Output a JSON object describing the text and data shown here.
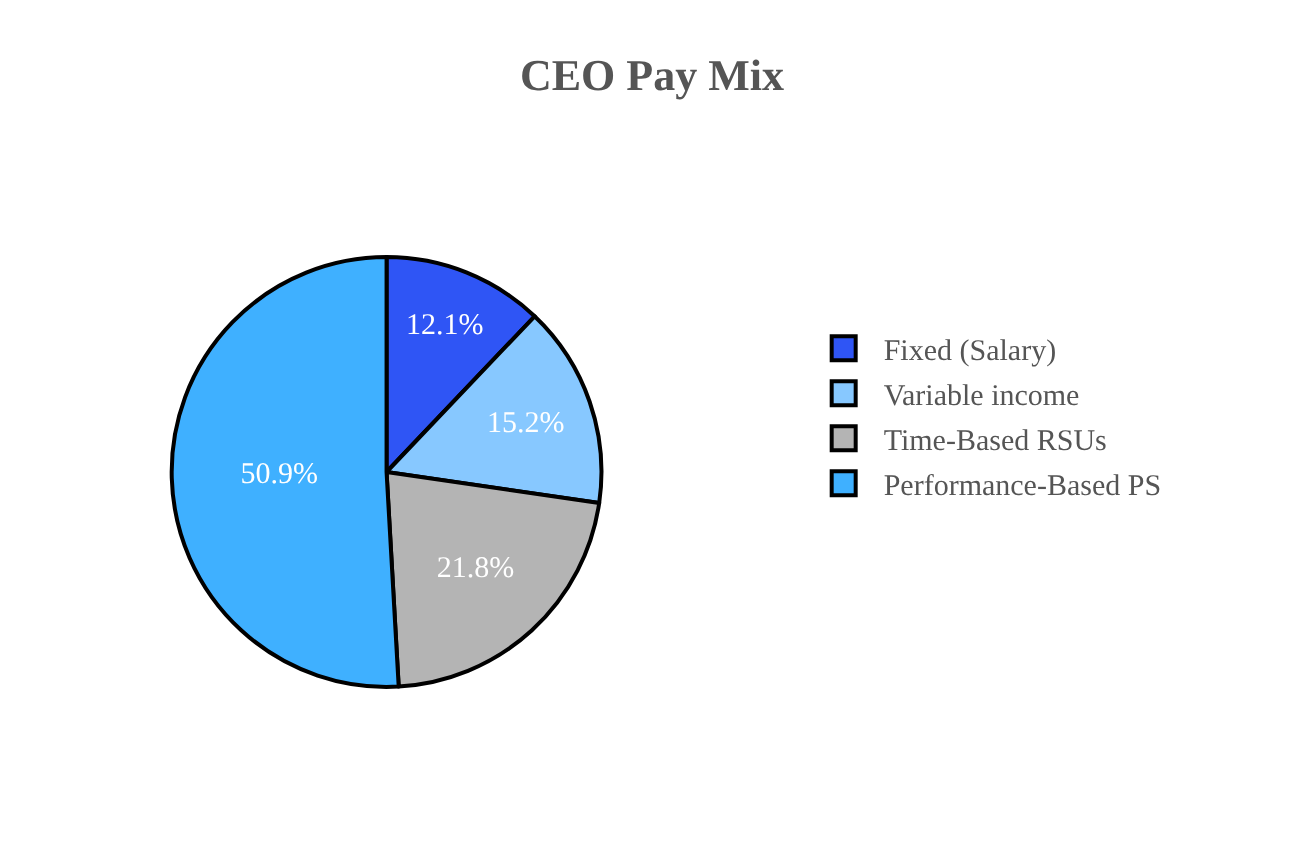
{
  "chart_data": {
    "type": "pie",
    "title": "CEO Pay Mix",
    "categories": [
      "Fixed (Salary)",
      "Variable income",
      "Time-Based RSUs",
      "Performance-Based PS"
    ],
    "values": [
      12.1,
      15.2,
      21.8,
      50.9
    ],
    "colors": [
      "#2f55f5",
      "#87c8ff",
      "#b4b4b4",
      "#3fb0ff"
    ],
    "value_labels": [
      "12.1%",
      "15.2%",
      "21.8%",
      "50.9%"
    ],
    "legend": "right"
  }
}
